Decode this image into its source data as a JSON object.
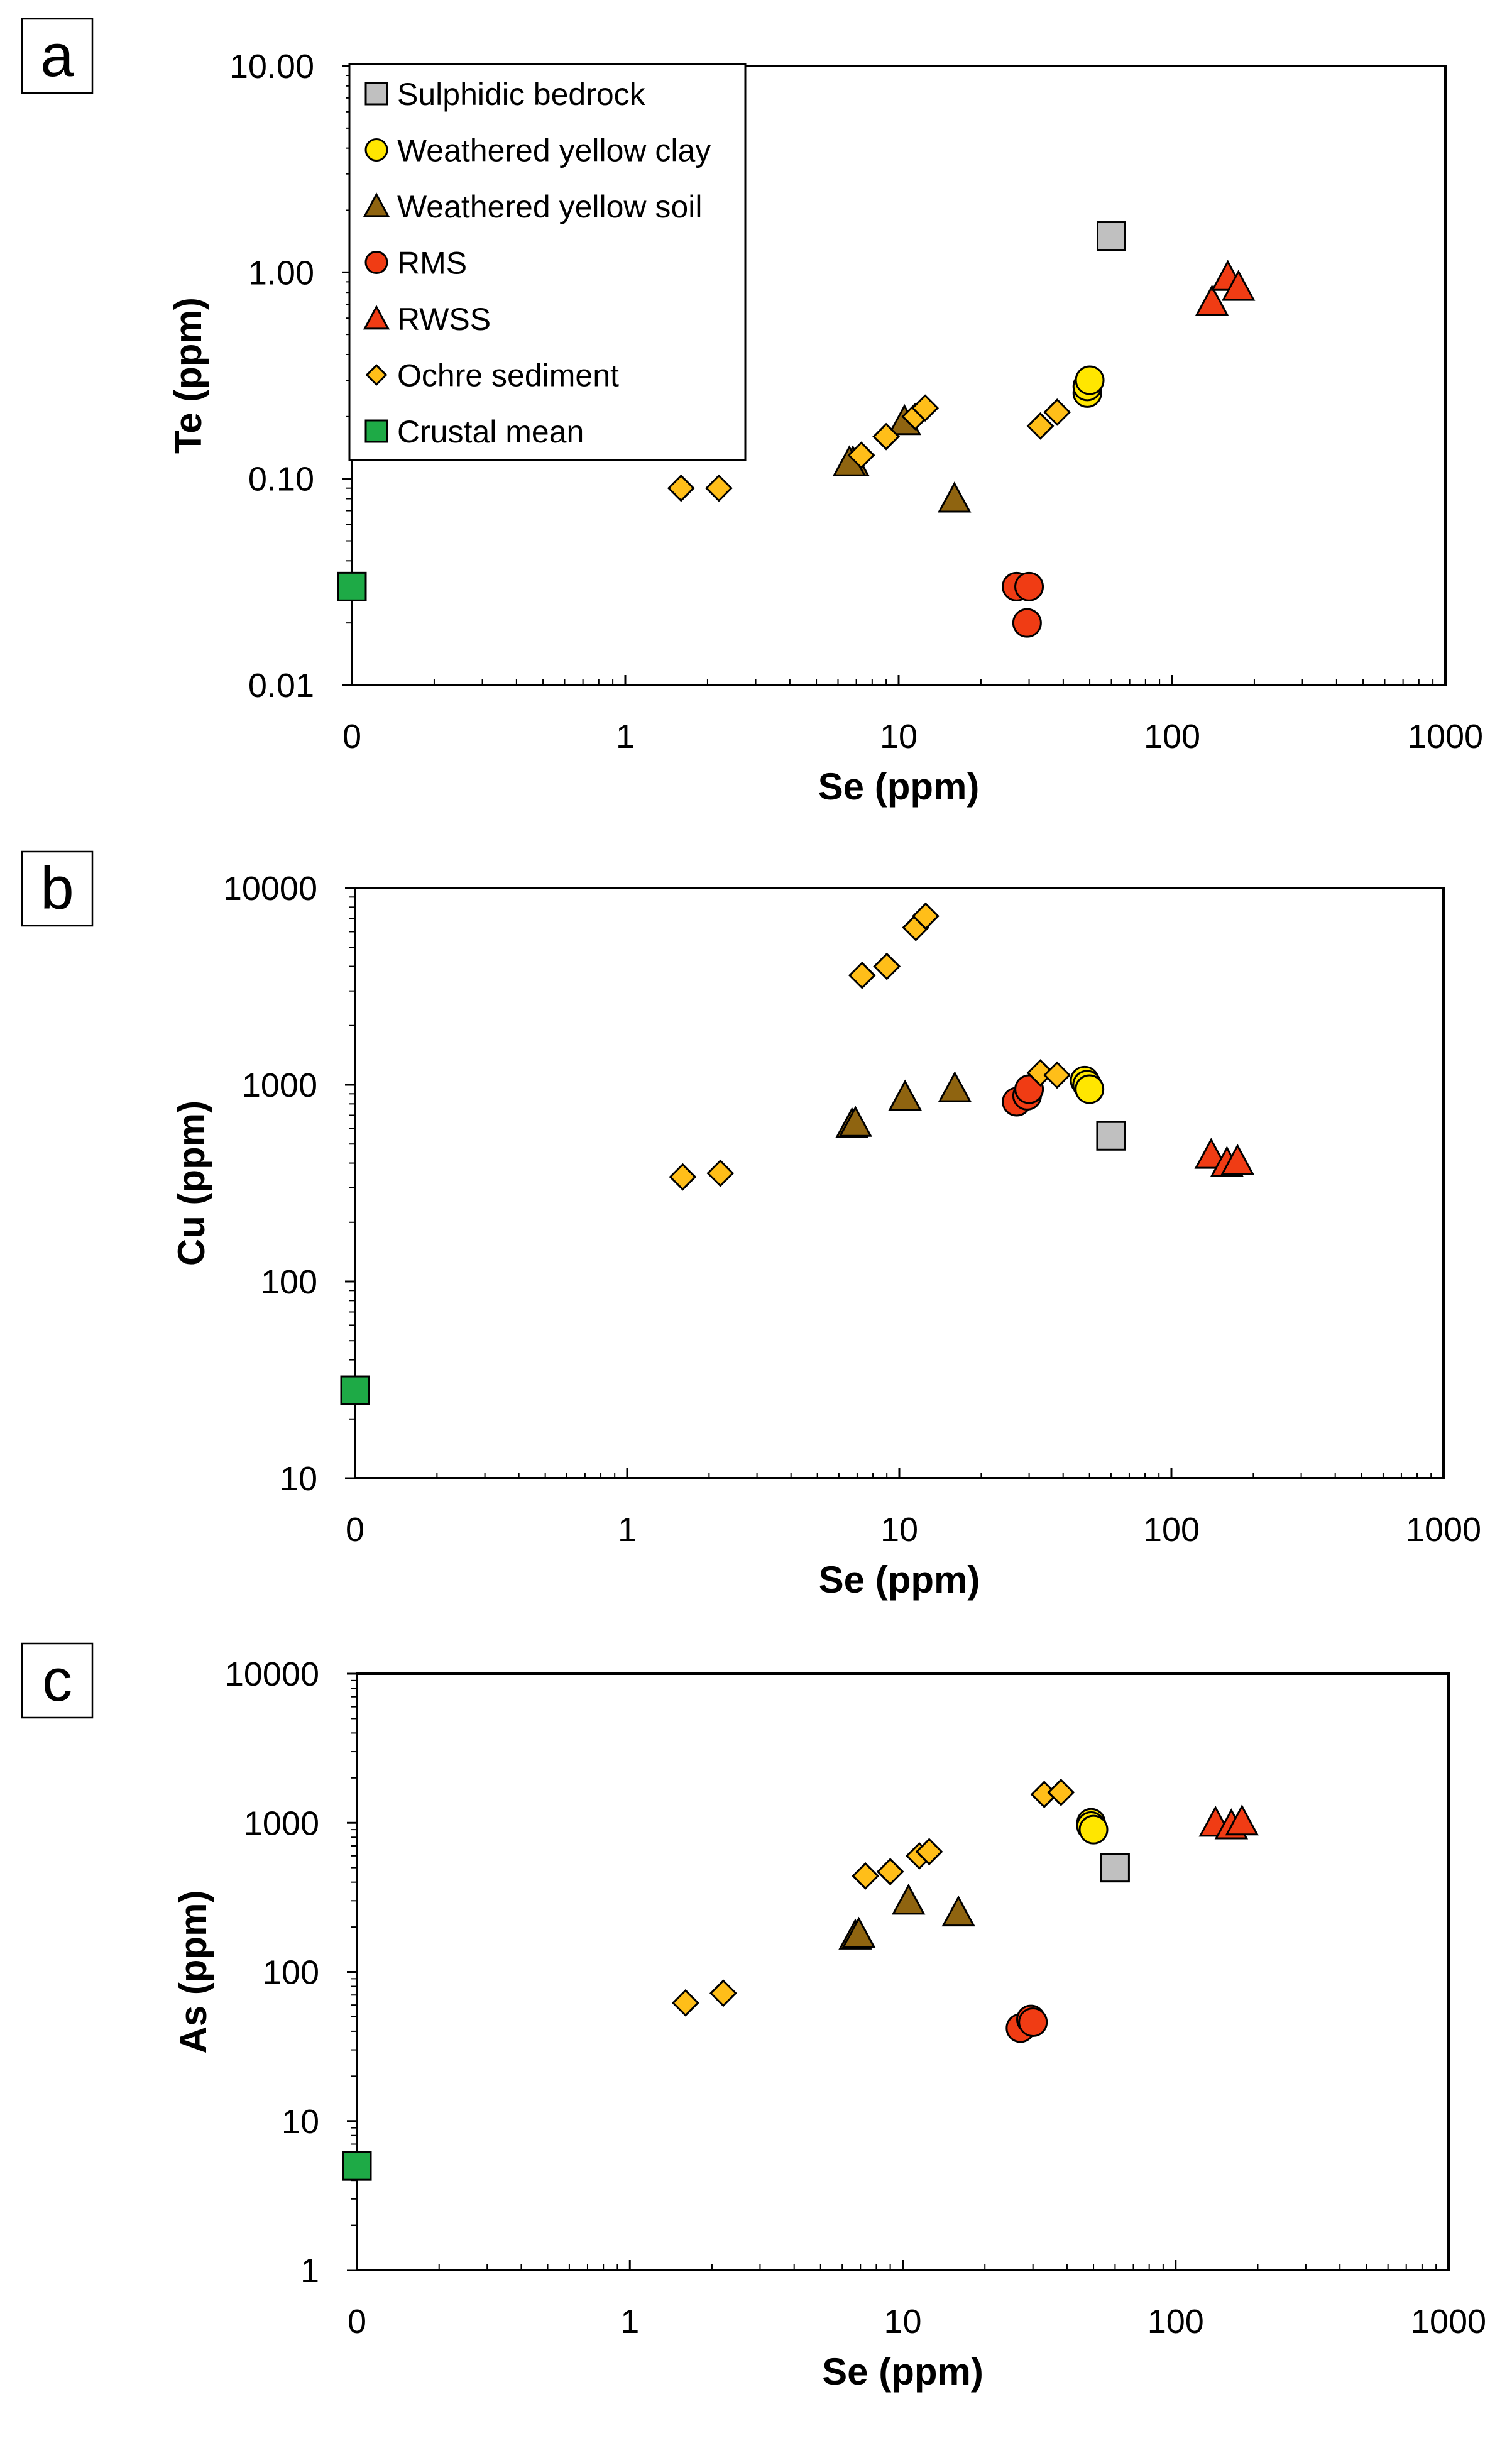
{
  "series_styles": [
    {
      "name": "Sulphidic bedrock",
      "marker": "square",
      "color": "#c0c0c0"
    },
    {
      "name": "Weathered yellow clay",
      "marker": "circle",
      "color": "#ffe600"
    },
    {
      "name": "Weathered yellow soil",
      "marker": "triangle",
      "color": "#8f6410"
    },
    {
      "name": "RMS",
      "marker": "circle",
      "color": "#f03c14"
    },
    {
      "name": "RWSS",
      "marker": "triangle",
      "color": "#f03c14"
    },
    {
      "name": "Ochre sediment",
      "marker": "diamond",
      "color": "#ffbe19"
    },
    {
      "name": "Crustal mean",
      "marker": "square",
      "color": "#1eaa46"
    }
  ],
  "chart_data": [
    {
      "panel": "a",
      "type": "scatter",
      "xscale": "log",
      "yscale": "log",
      "xlabel": "Se (ppm)",
      "ylabel": "Te (ppm)",
      "xlim": [
        0.1,
        1000
      ],
      "ylim": [
        0.01,
        10
      ],
      "xticks": [
        0.1,
        1,
        10,
        100,
        1000
      ],
      "xtick_labels": [
        "0",
        "1",
        "10",
        "100",
        "1000"
      ],
      "yticks": [
        0.01,
        0.1,
        1,
        10
      ],
      "ytick_labels": [
        "0.01",
        "0.10",
        "1.00",
        "10.00"
      ],
      "legend": "top-left",
      "series": [
        {
          "name": "Sulphidic bedrock",
          "points": [
            [
              60,
              1.5
            ]
          ]
        },
        {
          "name": "Weathered yellow clay",
          "points": [
            [
              49,
              0.26
            ],
            [
              49,
              0.28
            ],
            [
              50,
              0.3
            ]
          ]
        },
        {
          "name": "Weathered yellow soil",
          "points": [
            [
              6.8,
              0.12
            ],
            [
              6.6,
              0.12
            ],
            [
              10.5,
              0.19
            ],
            [
              16,
              0.08
            ]
          ]
        },
        {
          "name": "RMS",
          "points": [
            [
              27,
              0.03
            ],
            [
              30,
              0.03
            ],
            [
              29.5,
              0.02
            ]
          ]
        },
        {
          "name": "RWSS",
          "points": [
            [
              140,
              0.72
            ],
            [
              160,
              0.95
            ],
            [
              175,
              0.85
            ]
          ]
        },
        {
          "name": "Ochre sediment",
          "points": [
            [
              1.6,
              0.09
            ],
            [
              2.2,
              0.09
            ],
            [
              7.3,
              0.13
            ],
            [
              9,
              0.16
            ],
            [
              11.5,
              0.2
            ],
            [
              12.5,
              0.22
            ],
            [
              33,
              0.18
            ],
            [
              38,
              0.21
            ]
          ]
        },
        {
          "name": "Crustal mean",
          "points": [
            [
              0.1,
              0.03
            ]
          ]
        }
      ]
    },
    {
      "panel": "b",
      "type": "scatter",
      "xscale": "log",
      "yscale": "log",
      "xlabel": "Se (ppm)",
      "ylabel": "Cu (ppm)",
      "xlim": [
        0.1,
        1000
      ],
      "ylim": [
        10,
        10000
      ],
      "xticks": [
        0.1,
        1,
        10,
        100,
        1000
      ],
      "xtick_labels": [
        "0",
        "1",
        "10",
        "100",
        "1000"
      ],
      "yticks": [
        10,
        100,
        1000,
        10000
      ],
      "ytick_labels": [
        "10",
        "100",
        "1000",
        "10000"
      ],
      "series": [
        {
          "name": "Sulphidic bedrock",
          "points": [
            [
              60,
              550
            ]
          ]
        },
        {
          "name": "Weathered yellow clay",
          "points": [
            [
              48,
              1050
            ],
            [
              49,
              1000
            ],
            [
              50,
              950
            ]
          ]
        },
        {
          "name": "Weathered yellow soil",
          "points": [
            [
              6.7,
              630
            ],
            [
              6.9,
              640
            ],
            [
              10.5,
              870
            ],
            [
              16,
              960
            ]
          ]
        },
        {
          "name": "RMS",
          "points": [
            [
              27,
              820
            ],
            [
              29.5,
              880
            ],
            [
              30,
              950
            ]
          ]
        },
        {
          "name": "RWSS",
          "points": [
            [
              140,
              440
            ],
            [
              160,
              400
            ],
            [
              175,
              410
            ]
          ]
        },
        {
          "name": "Ochre sediment",
          "points": [
            [
              1.6,
              340
            ],
            [
              2.2,
              355
            ],
            [
              7.3,
              3600
            ],
            [
              9,
              4000
            ],
            [
              11.5,
              6300
            ],
            [
              12.5,
              7200
            ],
            [
              33,
              1150
            ],
            [
              38,
              1120
            ]
          ]
        },
        {
          "name": "Crustal mean",
          "points": [
            [
              0.1,
              28
            ]
          ]
        }
      ]
    },
    {
      "panel": "c",
      "type": "scatter",
      "xscale": "log",
      "yscale": "log",
      "xlabel": "Se (ppm)",
      "ylabel": "As (ppm)",
      "xlim": [
        0.1,
        1000
      ],
      "ylim": [
        1,
        10000
      ],
      "xticks": [
        0.1,
        1,
        10,
        100,
        1000
      ],
      "xtick_labels": [
        "0",
        "1",
        "10",
        "100",
        "1000"
      ],
      "yticks": [
        1,
        10,
        100,
        1000,
        10000
      ],
      "ytick_labels": [
        "1",
        "10",
        "100",
        "1000",
        "10000"
      ],
      "series": [
        {
          "name": "Sulphidic bedrock",
          "points": [
            [
              60,
              500
            ]
          ]
        },
        {
          "name": "Weathered yellow clay",
          "points": [
            [
              49,
              1000
            ],
            [
              49,
              950
            ],
            [
              50,
              900
            ]
          ]
        },
        {
          "name": "Weathered yellow soil",
          "points": [
            [
              6.7,
              175
            ],
            [
              6.9,
              180
            ],
            [
              10.5,
              300
            ],
            [
              16,
              250
            ]
          ]
        },
        {
          "name": "RMS",
          "points": [
            [
              27,
              42
            ],
            [
              29.5,
              48
            ],
            [
              30,
              46
            ]
          ]
        },
        {
          "name": "RWSS",
          "points": [
            [
              140,
              1000
            ],
            [
              160,
              960
            ],
            [
              175,
              1020
            ]
          ]
        },
        {
          "name": "Ochre sediment",
          "points": [
            [
              1.6,
              62
            ],
            [
              2.2,
              72
            ],
            [
              7.3,
              440
            ],
            [
              9,
              470
            ],
            [
              11.5,
              600
            ],
            [
              12.5,
              640
            ],
            [
              33,
              1550
            ],
            [
              38,
              1600
            ]
          ]
        },
        {
          "name": "Crustal mean",
          "points": [
            [
              0.1,
              5
            ]
          ]
        }
      ]
    }
  ]
}
